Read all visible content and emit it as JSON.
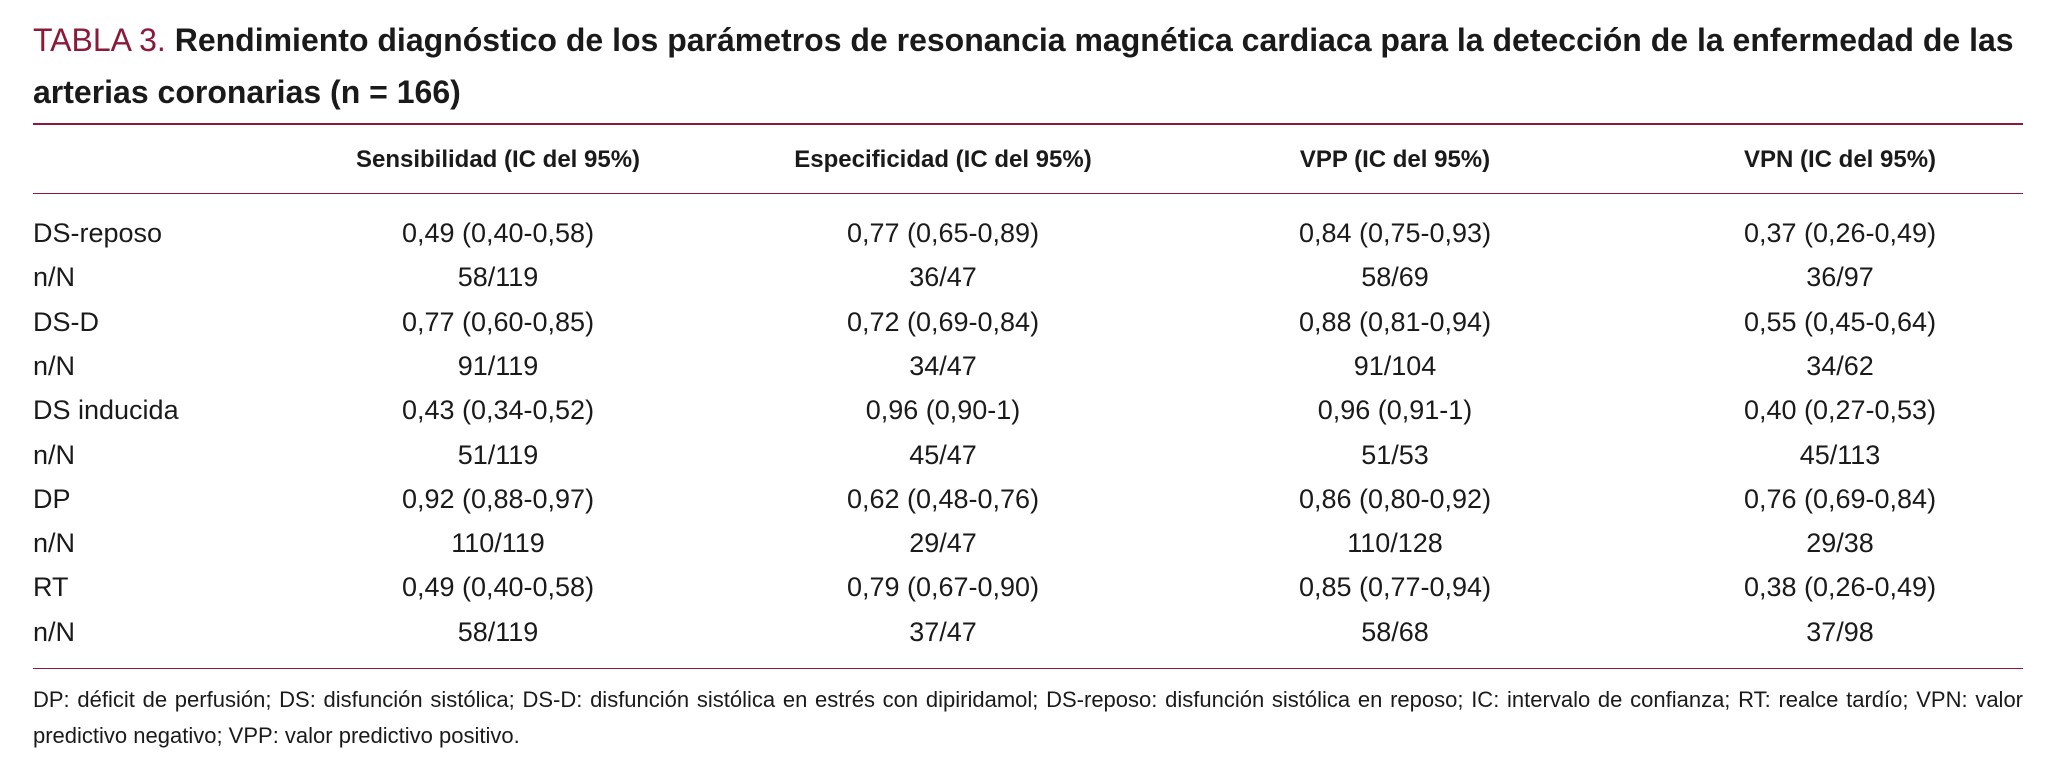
{
  "title": {
    "label": "TABLA 3.",
    "text": "Rendimiento diagnóstico de los parámetros de resonancia magnética cardiaca para la detección de la enfermedad de las arterias coronarias (n = 166)"
  },
  "table": {
    "header": [
      "Sensibilidad (IC del 95%)",
      "Especificidad (IC del 95%)",
      "VPP (IC del 95%)",
      "VPN (IC del 95%)"
    ],
    "rows": [
      [
        "DS-reposo",
        "0,49 (0,40-0,58)",
        "0,77 (0,65-0,89)",
        "0,84 (0,75-0,93)",
        "0,37 (0,26-0,49)"
      ],
      [
        "n/N",
        "58/119",
        "36/47",
        "58/69",
        "36/97"
      ],
      [
        "DS-D",
        "0,77 (0,60-0,85)",
        "0,72 (0,69-0,84)",
        "0,88 (0,81-0,94)",
        "0,55 (0,45-0,64)"
      ],
      [
        "n/N",
        "91/119",
        "34/47",
        "91/104",
        "34/62"
      ],
      [
        "DS inducida",
        "0,43 (0,34-0,52)",
        "0,96 (0,90-1)",
        "0,96 (0,91-1)",
        "0,40 (0,27-0,53)"
      ],
      [
        "n/N",
        "51/119",
        "45/47",
        "51/53",
        "45/113"
      ],
      [
        "DP",
        "0,92 (0,88-0,97)",
        "0,62 (0,48-0,76)",
        "0,86 (0,80-0,92)",
        "0,76 (0,69-0,84)"
      ],
      [
        "n/N",
        "110/119",
        "29/47",
        "110/128",
        "29/38"
      ],
      [
        "RT",
        "0,49 (0,40-0,58)",
        "0,79 (0,67-0,90)",
        "0,85 (0,77-0,94)",
        "0,38 (0,26-0,49)"
      ],
      [
        "n/N",
        "58/119",
        "37/47",
        "58/68",
        "37/98"
      ]
    ]
  },
  "footnote": "DP: déficit de perfusión; DS: disfunción sistólica; DS-D: disfunción sistólica en estrés con dipiridamol; DS-reposo: disfunción sistólica en reposo; IC: intervalo de confianza; RT: realce tardío; VPN: valor predictivo negativo; VPP: valor predictivo positivo."
}
